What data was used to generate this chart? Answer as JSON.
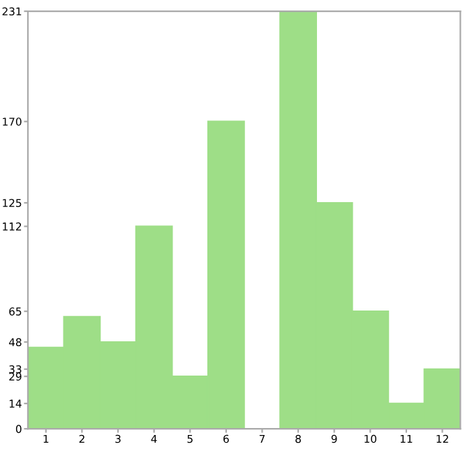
{
  "chart_data": {
    "type": "bar",
    "categories": [
      "1",
      "2",
      "3",
      "4",
      "5",
      "6",
      "7",
      "8",
      "9",
      "10",
      "11",
      "12"
    ],
    "values": [
      45,
      62,
      48,
      112,
      29,
      170,
      0,
      231,
      125,
      65,
      14,
      33
    ],
    "color": "#9ede87",
    "ylim": [
      0,
      231
    ],
    "yticks": [
      0,
      14,
      29,
      33,
      48,
      65,
      112,
      125,
      170,
      231
    ],
    "grid": false
  }
}
